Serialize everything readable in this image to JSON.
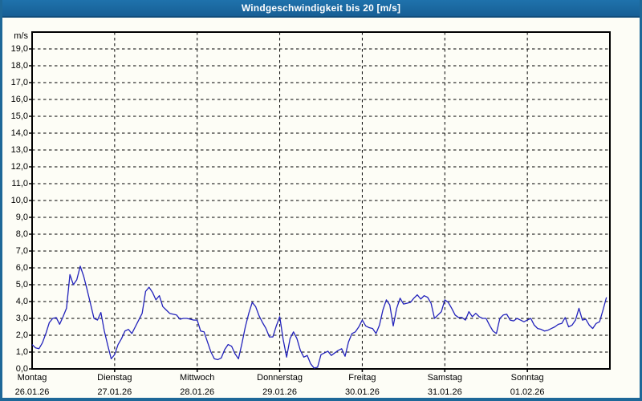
{
  "window": {
    "title": "Windgeschwindigkeit bis 20 [m/s]"
  },
  "colors": {
    "frame": "#1e6898",
    "titlebar": "#1b6aa3",
    "background": "#fdfdf6",
    "grid": "#000000",
    "axis_text": "#000000",
    "series_line": "#2222bb"
  },
  "chart_data": {
    "type": "line",
    "title": "Windgeschwindigkeit bis 20 [m/s]",
    "ylabel": "m/s",
    "y_unit_label": "m/s",
    "ylim": [
      0,
      20
    ],
    "y_tick_labels": [
      "0,0",
      "1,0",
      "2,0",
      "3,0",
      "4,0",
      "5,0",
      "6,0",
      "7,0",
      "8,0",
      "9,0",
      "10,0",
      "11,0",
      "12,0",
      "13,0",
      "14,0",
      "15,0",
      "16,0",
      "17,0",
      "18,0",
      "19,0"
    ],
    "grid": true,
    "legend_position": "none",
    "x_days": [
      {
        "name": "Montag",
        "date": "26.01.26"
      },
      {
        "name": "Dienstag",
        "date": "27.01.26"
      },
      {
        "name": "Mittwoch",
        "date": "28.01.26"
      },
      {
        "name": "Donnerstag",
        "date": "29.01.26"
      },
      {
        "name": "Freitag",
        "date": "30.01.26"
      },
      {
        "name": "Samstag",
        "date": "31.01.26"
      },
      {
        "name": "Sonntag",
        "date": "01.02.26"
      }
    ],
    "samples_per_day": 24,
    "series": [
      {
        "name": "Windgeschwindigkeit",
        "unit": "m/s",
        "color": "#2222bb",
        "values": [
          1.45,
          1.25,
          1.2,
          1.55,
          2.1,
          2.75,
          3.0,
          3.05,
          2.65,
          3.1,
          3.6,
          5.6,
          5.0,
          5.3,
          6.1,
          5.5,
          4.7,
          3.85,
          3.0,
          2.9,
          3.35,
          2.25,
          1.4,
          0.6,
          0.85,
          1.45,
          1.8,
          2.25,
          2.35,
          2.1,
          2.5,
          2.9,
          3.3,
          4.6,
          4.85,
          4.55,
          4.1,
          4.35,
          3.7,
          3.5,
          3.3,
          3.25,
          3.2,
          2.95,
          3.0,
          3.0,
          2.95,
          2.9,
          2.9,
          2.25,
          2.2,
          1.6,
          1.0,
          0.6,
          0.55,
          0.65,
          1.15,
          1.45,
          1.35,
          0.9,
          0.6,
          1.5,
          2.5,
          3.3,
          3.95,
          3.7,
          3.15,
          2.75,
          2.4,
          1.9,
          1.9,
          2.55,
          3.1,
          1.75,
          0.7,
          1.8,
          2.2,
          1.8,
          1.1,
          0.7,
          0.8,
          0.3,
          0.05,
          0.1,
          0.85,
          0.95,
          1.05,
          0.8,
          0.95,
          1.1,
          1.2,
          0.75,
          1.6,
          2.1,
          2.2,
          2.5,
          2.9,
          2.55,
          2.45,
          2.4,
          2.1,
          2.6,
          3.5,
          4.1,
          3.8,
          2.55,
          3.6,
          4.2,
          3.85,
          3.9,
          3.95,
          4.2,
          4.4,
          4.15,
          4.35,
          4.25,
          3.9,
          3.0,
          3.2,
          3.4,
          4.1,
          3.95,
          3.6,
          3.2,
          3.05,
          3.05,
          2.9,
          3.4,
          3.1,
          3.3,
          3.1,
          3.0,
          3.0,
          2.6,
          2.25,
          2.1,
          3.0,
          3.2,
          3.25,
          2.9,
          2.85,
          3.0,
          2.9,
          2.8,
          2.9,
          3.0,
          2.6,
          2.4,
          2.35,
          2.25,
          2.3,
          2.4,
          2.5,
          2.65,
          2.7,
          3.05,
          2.5,
          2.6,
          2.9,
          3.6,
          2.9,
          2.95,
          2.6,
          2.4,
          2.7,
          2.8,
          3.5,
          4.25
        ]
      }
    ]
  }
}
